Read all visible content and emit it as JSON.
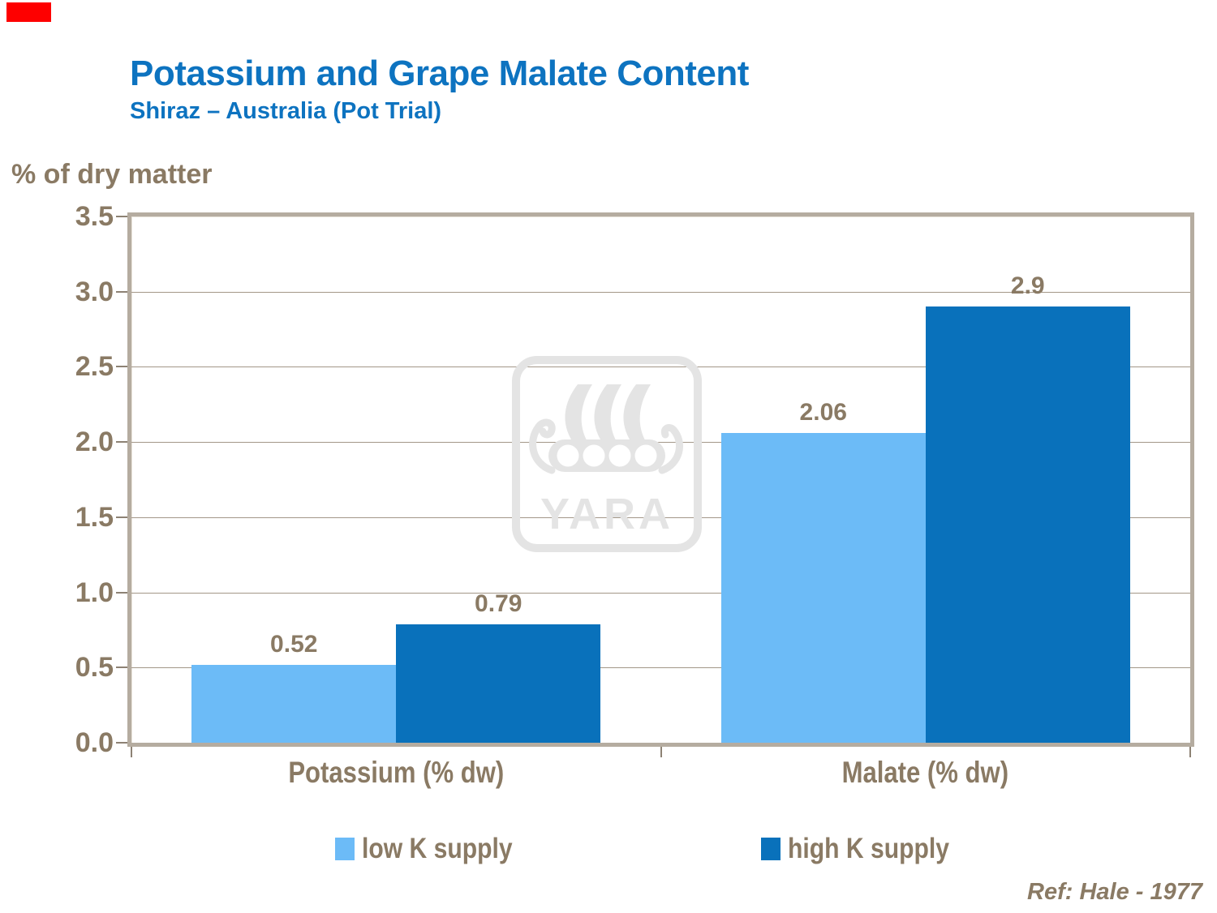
{
  "header": {
    "title": "Potassium and Grape Malate Content",
    "subtitle": "Shiraz – Australia (Pot Trial)"
  },
  "footer": {
    "reference": "Ref: Hale - 1977"
  },
  "watermark": {
    "text": "YARA"
  },
  "decoration": {
    "red_marker_color": "#fe0000"
  },
  "colors": {
    "title_blue": "#0d73c0",
    "text_brown": "#8a7a64",
    "plot_border": "#b5aca0",
    "gridline": "#a39788",
    "watermark_gray": "#e4e4e4"
  },
  "chart_data": {
    "type": "bar",
    "title": "Potassium and Grape Malate Content",
    "subtitle": "Shiraz – Australia (Pot Trial)",
    "axis_label": "% of dry matter",
    "categories": [
      "Potassium (% dw)",
      "Malate (% dw)"
    ],
    "series": [
      {
        "name": "low K supply",
        "color": "#6cbbf7",
        "values": [
          0.52,
          2.06
        ],
        "labels": [
          "0.52",
          "2.06"
        ]
      },
      {
        "name": "high K supply",
        "color": "#0971bb",
        "values": [
          0.79,
          2.9
        ],
        "labels": [
          "0.79",
          "2.9"
        ]
      }
    ],
    "ylim": [
      0,
      3.5
    ],
    "ytick_step": 0.5,
    "ytick_labels": [
      "3.5",
      "3.0",
      "2.5",
      "2.0",
      "1.5",
      "1.0",
      "0.5",
      "0.0"
    ],
    "grid": true,
    "legend_position": "bottom"
  }
}
